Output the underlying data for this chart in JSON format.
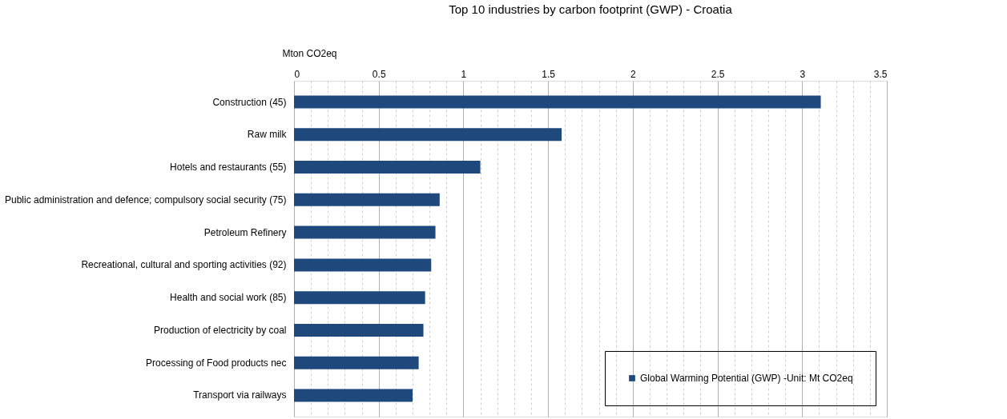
{
  "chart_data": {
    "type": "bar",
    "orientation": "horizontal",
    "title": "Top 10 industries by carbon footprint (GWP) - Croatia",
    "xlabel": "Mton CO2eq",
    "categories": [
      "Construction (45)",
      "Raw milk",
      "Hotels and restaurants (55)",
      "Public administration and defence; compulsory social security (75)",
      "Petroleum Refinery",
      "Recreational, cultural and sporting activities (92)",
      "Health and social work (85)",
      "Production of electricity by coal",
      "Processing of Food products nec",
      "Transport via railways"
    ],
    "series": [
      {
        "name": "Global Warming Potential (GWP) -Unit: Mt CO2eq",
        "color": "#1f497d",
        "values": [
          3.11,
          1.58,
          1.1,
          0.86,
          0.835,
          0.81,
          0.774,
          0.764,
          0.736,
          0.7
        ]
      }
    ],
    "xlim": [
      0,
      3.5
    ],
    "xticks": [
      0,
      {
        "value": 0.1,
        "label": null
      },
      {
        "value": 0.2,
        "label": null
      },
      {
        "value": 0.3,
        "label": null
      },
      {
        "value": 0.4,
        "label": null
      },
      0.5,
      {
        "value": 0.6,
        "label": null
      },
      {
        "value": 0.7,
        "label": null
      },
      {
        "value": 0.8,
        "label": null
      },
      {
        "value": 0.9,
        "label": null
      },
      1,
      {
        "value": 1.1,
        "label": null
      },
      {
        "value": 1.2,
        "label": null
      },
      {
        "value": 1.3,
        "label": null
      },
      {
        "value": 1.4,
        "label": null
      },
      1.5,
      {
        "value": 1.6,
        "label": null
      },
      {
        "value": 1.7,
        "label": null
      },
      {
        "value": 1.8,
        "label": null
      },
      {
        "value": 1.9,
        "label": null
      },
      2,
      {
        "value": 2.1,
        "label": null
      },
      {
        "value": 2.2,
        "label": null
      },
      {
        "value": 2.3,
        "label": null
      },
      {
        "value": 2.4,
        "label": null
      },
      2.5,
      {
        "value": 2.6,
        "label": null
      },
      {
        "value": 2.7,
        "label": null
      },
      {
        "value": 2.8,
        "label": null
      },
      {
        "value": 2.9,
        "label": null
      },
      3,
      {
        "value": 3.1,
        "label": null
      },
      {
        "value": 3.2,
        "label": null
      },
      {
        "value": 3.3,
        "label": null
      },
      {
        "value": 3.4,
        "label": null
      },
      3.5
    ],
    "grid": "x",
    "legend": "bottom right"
  }
}
